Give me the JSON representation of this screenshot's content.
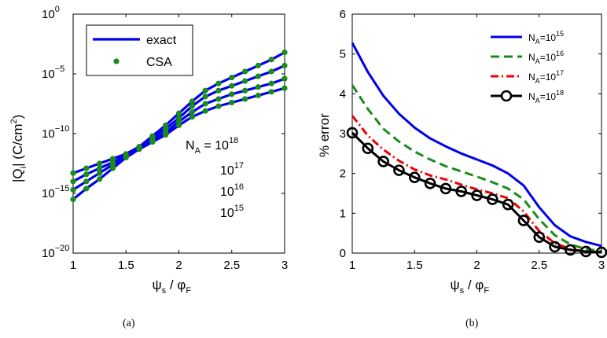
{
  "chart_data": [
    {
      "type": "line",
      "panel": "a",
      "caption": "(a)",
      "xlabel": {
        "main": "ψ",
        "sub": "s",
        "rest": " / φ",
        "sub2": "F"
      },
      "ylabel": {
        "main": "|Q",
        "sub": "i",
        "rest": "| (C/cm",
        "sup": "2",
        "end": ")"
      },
      "xlim": [
        1,
        3
      ],
      "ylim_exp": [
        -20,
        0
      ],
      "yscale": "log",
      "xticks": [
        1,
        1.5,
        2,
        2.5,
        3
      ],
      "xtick_labels": [
        "1",
        "1.5",
        "2",
        "2.5",
        "3"
      ],
      "yticks_exp": [
        0,
        -5,
        -10,
        -15,
        -20
      ],
      "ytick_labels": [
        {
          "base": "10",
          "exp": "0"
        },
        {
          "base": "10",
          "exp": "−5"
        },
        {
          "base": "10",
          "exp": "−10"
        },
        {
          "base": "10",
          "exp": "−15"
        },
        {
          "base": "10",
          "exp": "−20"
        }
      ],
      "legend": {
        "position": "top-left",
        "entries": [
          {
            "label": "exact",
            "style": "line",
            "color": "#0000ee"
          },
          {
            "label": "CSA",
            "style": "marker",
            "color": "#1a8c1a"
          }
        ]
      },
      "annotations": {
        "first": {
          "prefix": "N",
          "sub": "A",
          "mid": " = 10",
          "sup": "18"
        },
        "others": [
          {
            "base": "10",
            "sup": "17"
          },
          {
            "base": "10",
            "sup": "16"
          },
          {
            "base": "10",
            "sup": "15"
          }
        ]
      },
      "x": [
        1.0,
        1.125,
        1.25,
        1.375,
        1.5,
        1.625,
        1.75,
        1.875,
        2.0,
        2.125,
        2.25,
        2.375,
        2.5,
        2.625,
        2.75,
        2.875,
        3.0
      ],
      "series": [
        {
          "NA": "1e18",
          "color": "#0000ee",
          "marker_color": "#1a8c1a",
          "y_exp": [
            -13.3,
            -12.9,
            -12.5,
            -12.1,
            -11.7,
            -11.1,
            -10.2,
            -9.3,
            -8.3,
            -7.3,
            -6.4,
            -5.8,
            -5.3,
            -4.8,
            -4.3,
            -3.8,
            -3.2
          ]
        },
        {
          "NA": "1e17",
          "color": "#0000ee",
          "marker_color": "#1a8c1a",
          "y_exp": [
            -14.0,
            -13.4,
            -12.9,
            -12.4,
            -11.8,
            -11.1,
            -10.4,
            -9.6,
            -8.7,
            -7.7,
            -6.9,
            -6.4,
            -6.0,
            -5.6,
            -5.2,
            -4.8,
            -4.3
          ]
        },
        {
          "NA": "1e16",
          "color": "#0000ee",
          "marker_color": "#1a8c1a",
          "y_exp": [
            -14.7,
            -14.0,
            -13.3,
            -12.6,
            -11.9,
            -11.2,
            -10.6,
            -9.9,
            -9.0,
            -8.2,
            -7.5,
            -7.1,
            -6.7,
            -6.4,
            -6.1,
            -5.8,
            -5.4
          ]
        },
        {
          "NA": "1e15",
          "color": "#0000ee",
          "marker_color": "#1a8c1a",
          "y_exp": [
            -15.5,
            -14.6,
            -13.8,
            -12.9,
            -12.0,
            -11.3,
            -10.7,
            -10.1,
            -9.3,
            -8.6,
            -8.1,
            -7.7,
            -7.4,
            -7.1,
            -6.8,
            -6.5,
            -6.2
          ]
        }
      ]
    },
    {
      "type": "line",
      "panel": "b",
      "caption": "(b)",
      "xlabel": {
        "main": "ψ",
        "sub": "s",
        "rest": " / φ",
        "sub2": "F"
      },
      "ylabel": {
        "main": "% error"
      },
      "xlim": [
        1,
        3
      ],
      "ylim": [
        0,
        6
      ],
      "xticks": [
        1,
        1.5,
        2,
        2.5,
        3
      ],
      "xtick_labels": [
        "1",
        "1.5",
        "2",
        "2.5",
        "3"
      ],
      "yticks": [
        0,
        1,
        2,
        3,
        4,
        5,
        6
      ],
      "ytick_labels": [
        "0",
        "1",
        "2",
        "3",
        "4",
        "5",
        "6"
      ],
      "legend": {
        "position": "top-right",
        "entries": [
          {
            "prefix": "N",
            "sub": "A",
            "mid": "=10",
            "sup": "15",
            "style": "solid",
            "color": "#0000ee"
          },
          {
            "prefix": "N",
            "sub": "A",
            "mid": "=10",
            "sup": "16",
            "style": "dashed",
            "color": "#1a8c1a"
          },
          {
            "prefix": "N",
            "sub": "A",
            "mid": "=10",
            "sup": "17",
            "style": "dashdot",
            "color": "#ee0000"
          },
          {
            "prefix": "N",
            "sub": "A",
            "mid": "=10",
            "sup": "18",
            "style": "solid-circle",
            "color": "#000000"
          }
        ]
      },
      "x": [
        1.0,
        1.125,
        1.25,
        1.375,
        1.5,
        1.625,
        1.75,
        1.875,
        2.0,
        2.125,
        2.25,
        2.375,
        2.5,
        2.625,
        2.75,
        2.875,
        3.0
      ],
      "series": [
        {
          "NA": "1e15",
          "style": "solid",
          "color": "#0000ee",
          "values": [
            5.28,
            4.55,
            3.95,
            3.5,
            3.15,
            2.88,
            2.68,
            2.5,
            2.35,
            2.2,
            2.0,
            1.7,
            1.15,
            0.7,
            0.42,
            0.28,
            0.18
          ]
        },
        {
          "NA": "1e16",
          "style": "dashed",
          "color": "#1a8c1a",
          "values": [
            4.22,
            3.62,
            3.12,
            2.8,
            2.55,
            2.35,
            2.18,
            2.05,
            1.92,
            1.78,
            1.62,
            1.35,
            0.85,
            0.45,
            0.22,
            0.1,
            0.05
          ]
        },
        {
          "NA": "1e17",
          "style": "dashdot",
          "color": "#ee0000",
          "values": [
            3.45,
            2.95,
            2.6,
            2.32,
            2.1,
            1.95,
            1.85,
            1.72,
            1.6,
            1.5,
            1.38,
            1.05,
            0.55,
            0.25,
            0.1,
            0.04,
            0.02
          ]
        },
        {
          "NA": "1e18",
          "style": "solid-circle",
          "color": "#000000",
          "values": [
            3.02,
            2.63,
            2.3,
            2.08,
            1.9,
            1.75,
            1.62,
            1.55,
            1.45,
            1.35,
            1.22,
            0.82,
            0.4,
            0.16,
            0.08,
            0.04,
            0.02
          ]
        }
      ]
    }
  ]
}
